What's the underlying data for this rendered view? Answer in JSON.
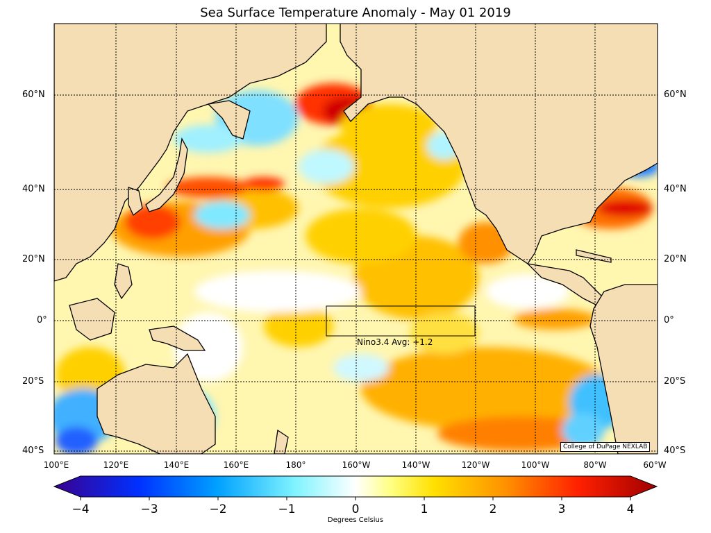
{
  "title": "Sea Surface Temperature Anomaly - May 01 2019",
  "lat_labels": [
    "60°N",
    "40°N",
    "20°N",
    "0°",
    "20°S",
    "40°S"
  ],
  "lon_labels": [
    "100°E",
    "120°E",
    "140°E",
    "160°E",
    "180°",
    "160°W",
    "140°W",
    "120°W",
    "100°W",
    "80°W",
    "60°W"
  ],
  "nino_box": {
    "label": "Nino3.4 Avg: +1.2"
  },
  "credit": "College of DuPage NEXLAB",
  "colorbar": {
    "ticks": [
      "−4",
      "−3",
      "−2",
      "−1",
      "0",
      "1",
      "2",
      "3",
      "4"
    ],
    "label": "Degrees Celsius",
    "range": [
      -4,
      4
    ],
    "colors": [
      "#3a0090",
      "#0040ff",
      "#00a0ff",
      "#80f0ff",
      "#ffffff",
      "#ffe000",
      "#ff9000",
      "#ff2000",
      "#a00000"
    ]
  },
  "colors": {
    "land": "#f5deb3",
    "ocean_neutral": "#ffffff",
    "warm": "#ffd040",
    "hot": "#e02000",
    "cool": "#80e8ff",
    "cold": "#2080ff"
  }
}
